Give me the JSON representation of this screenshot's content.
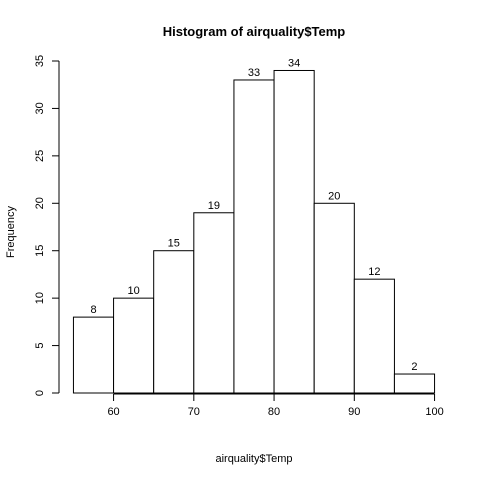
{
  "chart_data": {
    "type": "bar",
    "title": "Histogram of airquality$Temp",
    "xlabel": "airquality$Temp",
    "ylabel": "Frequency",
    "bins": [
      {
        "from": 55,
        "to": 60,
        "count": 8
      },
      {
        "from": 60,
        "to": 65,
        "count": 10
      },
      {
        "from": 65,
        "to": 70,
        "count": 15
      },
      {
        "from": 70,
        "to": 75,
        "count": 19
      },
      {
        "from": 75,
        "to": 80,
        "count": 33
      },
      {
        "from": 80,
        "to": 85,
        "count": 34
      },
      {
        "from": 85,
        "to": 90,
        "count": 20
      },
      {
        "from": 90,
        "to": 95,
        "count": 12
      },
      {
        "from": 95,
        "to": 100,
        "count": 2
      }
    ],
    "xlim": [
      55,
      100
    ],
    "ylim": [
      0,
      35
    ],
    "xticks": [
      "60",
      "70",
      "80",
      "90",
      "100"
    ],
    "yticks": [
      "0",
      "5",
      "10",
      "15",
      "20",
      "25",
      "30",
      "35"
    ],
    "data_labels": [
      "8",
      "10",
      "15",
      "19",
      "33",
      "34",
      "20",
      "12",
      "2"
    ],
    "grid": false,
    "legend": "none"
  }
}
